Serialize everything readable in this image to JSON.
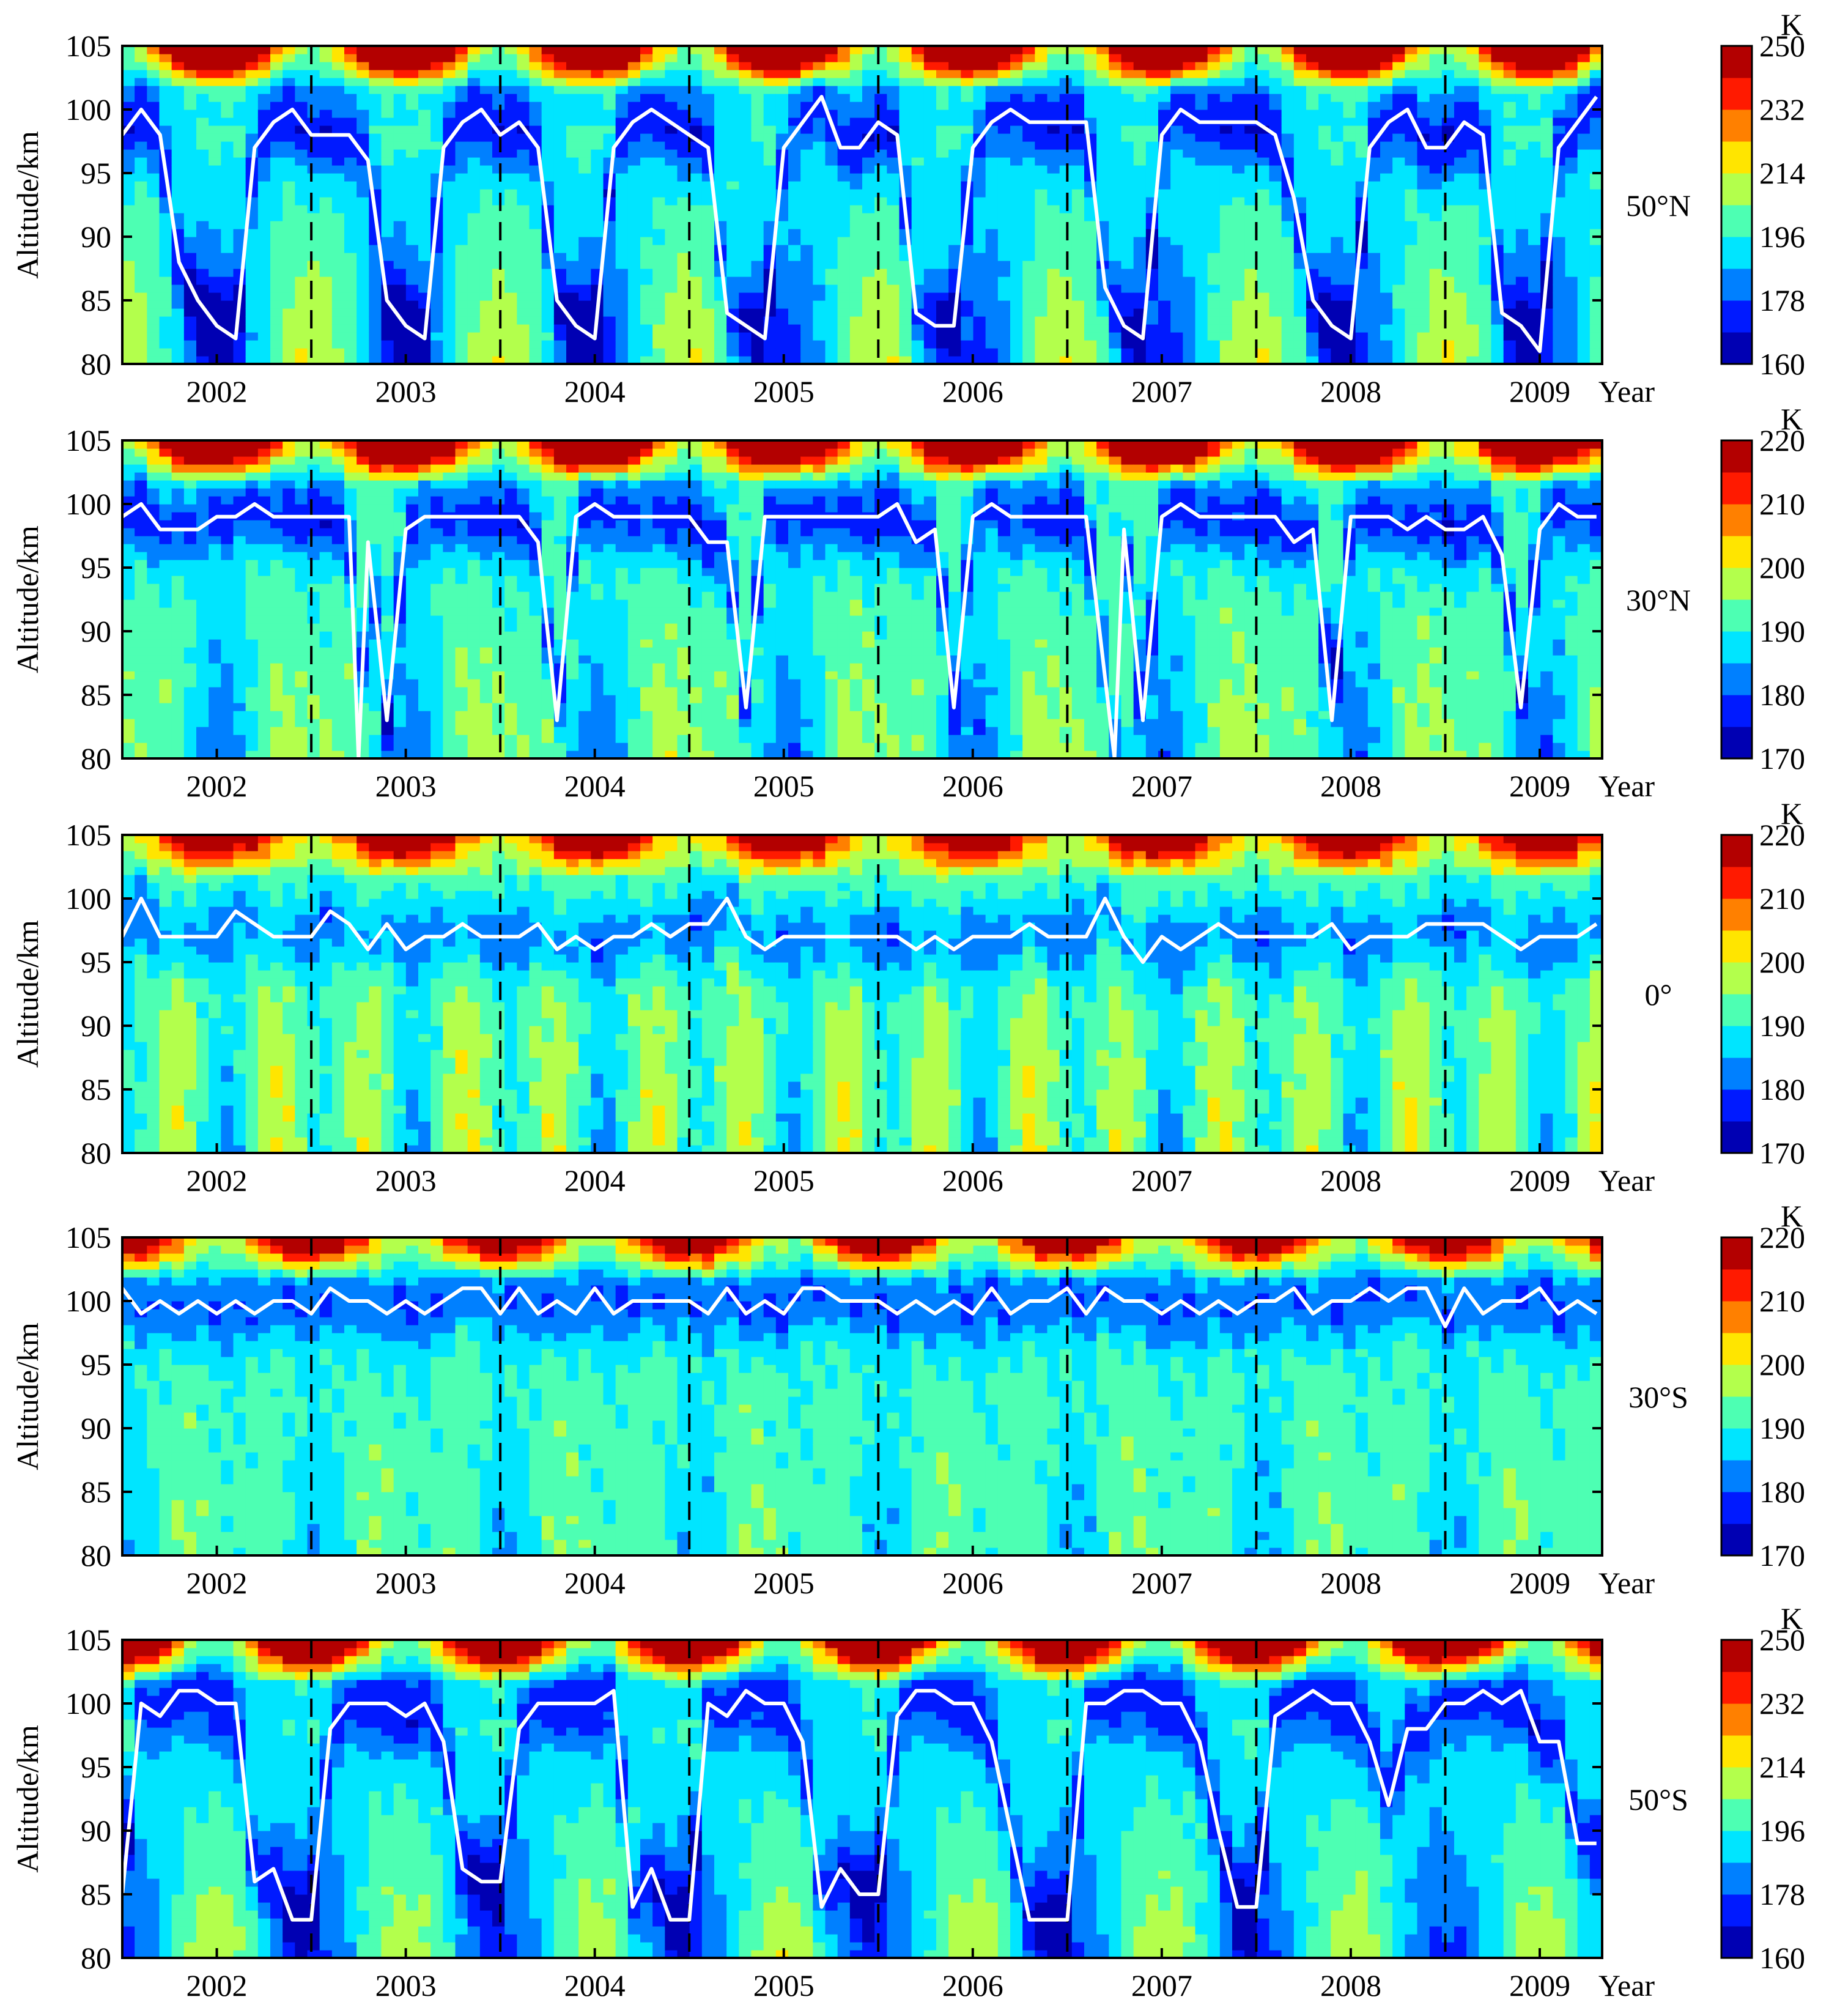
{
  "figure": {
    "unit_label": "K",
    "year_axis_label": "Year",
    "y_axis_label": "Altitude/km",
    "y_ticks": [
      "105",
      "100",
      "95",
      "90",
      "85",
      "80"
    ],
    "x_ticks": [
      "2002",
      "2003",
      "2004",
      "2005",
      "2006",
      "2007",
      "2008",
      "2009"
    ]
  },
  "chart_data": [
    {
      "type": "heatmap",
      "panel_label": "50°N",
      "xlabel": "Year",
      "ylabel": "Altitude/km",
      "xlim": [
        2001.5,
        2009.33
      ],
      "ylim": [
        80,
        105
      ],
      "x_ticks": [
        2002,
        2003,
        2004,
        2005,
        2006,
        2007,
        2008,
        2009
      ],
      "y_ticks": [
        80,
        85,
        90,
        95,
        100,
        105
      ],
      "year_boundaries_dashed": [
        2002.5,
        2003.5,
        2004.5,
        2005.5,
        2006.5,
        2007.5,
        2008.5
      ],
      "colorbar": {
        "unit": "K",
        "min": 160,
        "max": 250,
        "ticks": [
          160,
          178,
          196,
          214,
          232,
          250
        ]
      },
      "colormap": "jet",
      "temperature_model": {
        "mean": 194,
        "seasonal_amplitude": 22,
        "phase": 0.0,
        "semiannual_amplitude": 0
      },
      "mesopause_line": {
        "color": "#ffffff",
        "x": [
          2001.5,
          2001.6,
          2001.7,
          2001.8,
          2001.9,
          2002.0,
          2002.1,
          2002.2,
          2002.3,
          2002.4,
          2002.5,
          2002.6,
          2002.7,
          2002.8,
          2002.9,
          2003.0,
          2003.1,
          2003.2,
          2003.3,
          2003.4,
          2003.5,
          2003.6,
          2003.7,
          2003.8,
          2003.9,
          2004.0,
          2004.1,
          2004.2,
          2004.3,
          2004.4,
          2004.5,
          2004.6,
          2004.7,
          2004.8,
          2004.9,
          2005.0,
          2005.1,
          2005.2,
          2005.3,
          2005.4,
          2005.5,
          2005.6,
          2005.7,
          2005.8,
          2005.9,
          2006.0,
          2006.1,
          2006.2,
          2006.3,
          2006.4,
          2006.5,
          2006.6,
          2006.7,
          2006.8,
          2006.9,
          2007.0,
          2007.1,
          2007.2,
          2007.3,
          2007.4,
          2007.5,
          2007.6,
          2007.7,
          2007.8,
          2007.9,
          2008.0,
          2008.1,
          2008.2,
          2008.3,
          2008.4,
          2008.5,
          2008.6,
          2008.7,
          2008.8,
          2008.9,
          2009.0,
          2009.1,
          2009.2,
          2009.3
        ],
        "y": [
          98,
          100,
          98,
          88,
          85,
          83,
          82,
          97,
          99,
          100,
          98,
          98,
          98,
          96,
          85,
          83,
          82,
          97,
          99,
          100,
          98,
          99,
          97,
          85,
          83,
          82,
          97,
          99,
          100,
          99,
          98,
          97,
          84,
          83,
          82,
          97,
          99,
          101,
          97,
          97,
          99,
          98,
          84,
          83,
          83,
          97,
          99,
          100,
          99,
          99,
          99,
          99,
          86,
          83,
          82,
          98,
          100,
          99,
          99,
          99,
          99,
          98,
          93,
          85,
          83,
          82,
          97,
          99,
          100,
          97,
          97,
          99,
          98,
          84,
          83,
          81,
          97,
          99,
          101
        ]
      }
    },
    {
      "type": "heatmap",
      "panel_label": "30°N",
      "xlabel": "Year",
      "ylabel": "Altitude/km",
      "xlim": [
        2001.5,
        2009.33
      ],
      "ylim": [
        80,
        105
      ],
      "x_ticks": [
        2002,
        2003,
        2004,
        2005,
        2006,
        2007,
        2008,
        2009
      ],
      "y_ticks": [
        80,
        85,
        90,
        95,
        100,
        105
      ],
      "year_boundaries_dashed": [
        2002.5,
        2003.5,
        2004.5,
        2005.5,
        2006.5,
        2007.5,
        2008.5
      ],
      "colorbar": {
        "unit": "K",
        "min": 170,
        "max": 220,
        "ticks": [
          170,
          180,
          190,
          200,
          210,
          220
        ]
      },
      "colormap": "jet",
      "temperature_model": {
        "mean": 191,
        "seasonal_amplitude": 8,
        "phase": 0.0,
        "semiannual_amplitude": 3
      },
      "mesopause_line": {
        "color": "#ffffff",
        "x": [
          2001.5,
          2001.6,
          2001.7,
          2001.8,
          2001.9,
          2002.0,
          2002.1,
          2002.2,
          2002.3,
          2002.4,
          2002.5,
          2002.6,
          2002.7,
          2002.75,
          2002.8,
          2002.9,
          2003.0,
          2003.1,
          2003.2,
          2003.3,
          2003.4,
          2003.5,
          2003.6,
          2003.7,
          2003.8,
          2003.9,
          2004.0,
          2004.1,
          2004.2,
          2004.3,
          2004.4,
          2004.5,
          2004.6,
          2004.7,
          2004.8,
          2004.9,
          2005.0,
          2005.1,
          2005.2,
          2005.3,
          2005.4,
          2005.5,
          2005.6,
          2005.7,
          2005.8,
          2005.9,
          2006.0,
          2006.1,
          2006.2,
          2006.3,
          2006.4,
          2006.5,
          2006.6,
          2006.75,
          2006.8,
          2006.9,
          2007.0,
          2007.1,
          2007.2,
          2007.3,
          2007.4,
          2007.5,
          2007.6,
          2007.7,
          2007.8,
          2007.9,
          2008.0,
          2008.1,
          2008.2,
          2008.3,
          2008.4,
          2008.5,
          2008.6,
          2008.7,
          2008.8,
          2008.9,
          2009.0,
          2009.1,
          2009.2,
          2009.3
        ],
        "y": [
          99,
          100,
          98,
          98,
          98,
          99,
          99,
          100,
          99,
          99,
          99,
          99,
          99,
          80,
          97,
          83,
          98,
          99,
          99,
          99,
          99,
          99,
          99,
          97,
          83,
          99,
          100,
          99,
          99,
          99,
          99,
          99,
          97,
          97,
          84,
          99,
          99,
          99,
          99,
          99,
          99,
          99,
          100,
          97,
          98,
          84,
          99,
          100,
          99,
          99,
          99,
          99,
          99,
          80,
          98,
          83,
          99,
          100,
          99,
          99,
          99,
          99,
          99,
          97,
          98,
          83,
          99,
          99,
          99,
          98,
          99,
          98,
          98,
          99,
          96,
          84,
          98,
          100,
          99,
          99
        ]
      }
    },
    {
      "type": "heatmap",
      "panel_label": "0°",
      "xlabel": "Year",
      "ylabel": "Altitude/km",
      "xlim": [
        2001.5,
        2009.33
      ],
      "ylim": [
        80,
        105
      ],
      "x_ticks": [
        2002,
        2003,
        2004,
        2005,
        2006,
        2007,
        2008,
        2009
      ],
      "y_ticks": [
        80,
        85,
        90,
        95,
        100,
        105
      ],
      "year_boundaries_dashed": [
        2002.5,
        2003.5,
        2004.5,
        2005.5,
        2006.5,
        2007.5,
        2008.5
      ],
      "colorbar": {
        "unit": "K",
        "min": 170,
        "max": 220,
        "ticks": [
          170,
          180,
          190,
          200,
          210,
          220
        ]
      },
      "colormap": "jet",
      "temperature_model": {
        "mean": 193,
        "seasonal_amplitude": 3,
        "phase": 0.0,
        "semiannual_amplitude": 7
      },
      "mesopause_line": {
        "color": "#ffffff",
        "x": [
          2001.5,
          2001.6,
          2001.7,
          2001.8,
          2001.9,
          2002.0,
          2002.1,
          2002.2,
          2002.3,
          2002.4,
          2002.5,
          2002.6,
          2002.7,
          2002.8,
          2002.9,
          2003.0,
          2003.1,
          2003.2,
          2003.3,
          2003.4,
          2003.5,
          2003.6,
          2003.7,
          2003.8,
          2003.9,
          2004.0,
          2004.1,
          2004.2,
          2004.3,
          2004.4,
          2004.5,
          2004.6,
          2004.7,
          2004.8,
          2004.9,
          2005.0,
          2005.1,
          2005.2,
          2005.3,
          2005.4,
          2005.5,
          2005.6,
          2005.7,
          2005.8,
          2005.9,
          2006.0,
          2006.1,
          2006.2,
          2006.3,
          2006.4,
          2006.5,
          2006.6,
          2006.7,
          2006.8,
          2006.9,
          2007.0,
          2007.1,
          2007.2,
          2007.3,
          2007.4,
          2007.5,
          2007.6,
          2007.7,
          2007.8,
          2007.9,
          2008.0,
          2008.1,
          2008.2,
          2008.3,
          2008.4,
          2008.5,
          2008.6,
          2008.7,
          2008.8,
          2008.9,
          2009.0,
          2009.1,
          2009.2,
          2009.3
        ],
        "y": [
          97,
          100,
          97,
          97,
          97,
          97,
          99,
          98,
          97,
          97,
          97,
          99,
          98,
          96,
          98,
          96,
          97,
          97,
          98,
          97,
          97,
          97,
          98,
          96,
          97,
          96,
          97,
          97,
          98,
          97,
          98,
          98,
          100,
          97,
          96,
          97,
          97,
          97,
          97,
          97,
          97,
          97,
          96,
          97,
          96,
          97,
          97,
          97,
          98,
          97,
          97,
          97,
          100,
          97,
          95,
          97,
          96,
          97,
          98,
          97,
          97,
          97,
          97,
          97,
          98,
          96,
          97,
          97,
          97,
          98,
          98,
          98,
          98,
          97,
          96,
          97,
          97,
          97,
          98
        ]
      }
    },
    {
      "type": "heatmap",
      "panel_label": "30°S",
      "xlabel": "Year",
      "ylabel": "Altitude/km",
      "xlim": [
        2001.5,
        2009.33
      ],
      "ylim": [
        80,
        105
      ],
      "x_ticks": [
        2002,
        2003,
        2004,
        2005,
        2006,
        2007,
        2008,
        2009
      ],
      "y_ticks": [
        80,
        85,
        90,
        95,
        100,
        105
      ],
      "year_boundaries_dashed": [
        2002.5,
        2003.5,
        2004.5,
        2005.5,
        2006.5,
        2007.5,
        2008.5
      ],
      "colorbar": {
        "unit": "K",
        "min": 170,
        "max": 220,
        "ticks": [
          170,
          180,
          190,
          200,
          210,
          220
        ]
      },
      "colormap": "jet",
      "temperature_model": {
        "mean": 191,
        "seasonal_amplitude": 4,
        "phase": 0.5,
        "semiannual_amplitude": 3
      },
      "mesopause_line": {
        "color": "#ffffff",
        "x": [
          2001.5,
          2001.6,
          2001.7,
          2001.8,
          2001.9,
          2002.0,
          2002.1,
          2002.2,
          2002.3,
          2002.4,
          2002.5,
          2002.6,
          2002.7,
          2002.8,
          2002.9,
          2003.0,
          2003.1,
          2003.2,
          2003.3,
          2003.4,
          2003.5,
          2003.6,
          2003.7,
          2003.8,
          2003.9,
          2004.0,
          2004.1,
          2004.2,
          2004.3,
          2004.4,
          2004.5,
          2004.6,
          2004.7,
          2004.8,
          2004.9,
          2005.0,
          2005.1,
          2005.2,
          2005.3,
          2005.4,
          2005.5,
          2005.6,
          2005.7,
          2005.8,
          2005.9,
          2006.0,
          2006.1,
          2006.2,
          2006.3,
          2006.4,
          2006.5,
          2006.6,
          2006.7,
          2006.8,
          2006.9,
          2007.0,
          2007.1,
          2007.2,
          2007.3,
          2007.4,
          2007.5,
          2007.6,
          2007.7,
          2007.8,
          2007.9,
          2008.0,
          2008.1,
          2008.2,
          2008.3,
          2008.4,
          2008.5,
          2008.6,
          2008.7,
          2008.8,
          2008.9,
          2009.0,
          2009.1,
          2009.2,
          2009.3
        ],
        "y": [
          101,
          99,
          100,
          99,
          100,
          99,
          100,
          99,
          100,
          100,
          99,
          101,
          100,
          100,
          99,
          100,
          99,
          100,
          101,
          101,
          99,
          101,
          99,
          100,
          99,
          101,
          99,
          100,
          100,
          100,
          100,
          99,
          101,
          99,
          100,
          99,
          101,
          101,
          100,
          100,
          100,
          99,
          100,
          99,
          100,
          99,
          101,
          99,
          100,
          100,
          101,
          99,
          101,
          100,
          100,
          99,
          100,
          99,
          100,
          99,
          100,
          100,
          101,
          99,
          100,
          100,
          101,
          100,
          101,
          101,
          98,
          101,
          99,
          100,
          100,
          101,
          99,
          100,
          99
        ]
      }
    },
    {
      "type": "heatmap",
      "panel_label": "50°S",
      "xlabel": "Year",
      "ylabel": "Altitude/km",
      "xlim": [
        2001.5,
        2009.33
      ],
      "ylim": [
        80,
        105
      ],
      "x_ticks": [
        2002,
        2003,
        2004,
        2005,
        2006,
        2007,
        2008,
        2009
      ],
      "y_ticks": [
        80,
        85,
        90,
        95,
        100,
        105
      ],
      "year_boundaries_dashed": [
        2002.5,
        2003.5,
        2004.5,
        2005.5,
        2006.5,
        2007.5,
        2008.5
      ],
      "colorbar": {
        "unit": "K",
        "min": 160,
        "max": 250,
        "ticks": [
          160,
          178,
          196,
          214,
          232,
          250
        ]
      },
      "colormap": "jet",
      "temperature_model": {
        "mean": 193,
        "seasonal_amplitude": 20,
        "phase": 0.5,
        "semiannual_amplitude": 0
      },
      "mesopause_line": {
        "color": "#ffffff",
        "x": [
          2001.5,
          2001.6,
          2001.7,
          2001.8,
          2001.9,
          2002.0,
          2002.1,
          2002.2,
          2002.3,
          2002.4,
          2002.5,
          2002.6,
          2002.7,
          2002.8,
          2002.9,
          2003.0,
          2003.1,
          2003.2,
          2003.3,
          2003.4,
          2003.5,
          2003.6,
          2003.7,
          2003.8,
          2003.9,
          2004.0,
          2004.1,
          2004.2,
          2004.3,
          2004.4,
          2004.5,
          2004.6,
          2004.7,
          2004.8,
          2004.9,
          2005.0,
          2005.1,
          2005.2,
          2005.3,
          2005.4,
          2005.5,
          2005.6,
          2005.7,
          2005.8,
          2005.9,
          2006.0,
          2006.1,
          2006.2,
          2006.3,
          2006.4,
          2006.5,
          2006.6,
          2006.7,
          2006.8,
          2006.9,
          2007.0,
          2007.1,
          2007.2,
          2007.3,
          2007.4,
          2007.5,
          2007.6,
          2007.7,
          2007.8,
          2007.9,
          2008.0,
          2008.1,
          2008.2,
          2008.3,
          2008.4,
          2008.5,
          2008.6,
          2008.7,
          2008.8,
          2008.9,
          2009.0,
          2009.1,
          2009.2,
          2009.3
        ],
        "y": [
          85,
          100,
          99,
          101,
          101,
          100,
          100,
          86,
          87,
          83,
          83,
          98,
          100,
          100,
          100,
          99,
          100,
          97,
          87,
          86,
          86,
          98,
          100,
          100,
          100,
          100,
          101,
          84,
          87,
          83,
          83,
          100,
          99,
          101,
          100,
          100,
          97,
          84,
          87,
          85,
          85,
          99,
          101,
          101,
          100,
          100,
          97,
          90,
          83,
          83,
          83,
          100,
          100,
          101,
          101,
          100,
          100,
          97,
          90,
          84,
          84,
          99,
          100,
          101,
          100,
          100,
          97,
          92,
          98,
          98,
          100,
          100,
          101,
          100,
          101,
          97,
          97,
          89,
          89
        ]
      }
    }
  ]
}
